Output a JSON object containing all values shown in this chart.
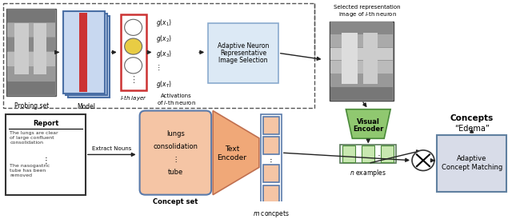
{
  "fig_width": 6.4,
  "fig_height": 2.74,
  "dpi": 100,
  "bg_color": "#ffffff",
  "colors": {
    "xray_dark": "#555555",
    "xray_mid": "#888888",
    "xray_light": "#bbbbbb",
    "model_face": "#c8d8f0",
    "model_edge": "#4a6fa5",
    "model_red": "#cc3333",
    "layer_edge": "#cc3333",
    "neuron_yellow": "#e8cc44",
    "neuron_empty": "#ffffff",
    "neuron_edge": "#666666",
    "anris_face": "#dce9f5",
    "anris_edge": "#8aaace",
    "ve_face": "#90c870",
    "ve_edge": "#4a8a3a",
    "eg_face": "#c8e8b0",
    "eg_edge": "#4a8a3a",
    "eg_outer": "#5a7a5a",
    "concept_face": "#f5c5a5",
    "concept_edge": "#5a7aaa",
    "te_face": "#f0a878",
    "te_edge": "#c07050",
    "emb_face": "#f5c5a5",
    "emb_edge": "#5a7aaa",
    "report_face": "#ffffff",
    "report_edge": "#333333",
    "acm_face": "#d8dce8",
    "acm_edge": "#6080a0",
    "dashed_edge": "#555555",
    "arrow": "#222222",
    "cross_edge": "#333333"
  },
  "labels": {
    "probing_set": "Probing set",
    "model": "Model",
    "l_th_layer": "$l$-th layer",
    "activations_line1": "Activations",
    "activations_line2": "of $i$-th neuron",
    "anris_line1": "Adaptive Neuron",
    "anris_line2": "Representative",
    "anris_line3": "Image Selection",
    "selected_rep_line1": "Selected representation",
    "selected_rep_line2": "image of $i$-th neuron",
    "visual_encoder_line1": "Visual",
    "visual_encoder_line2": "Encoder",
    "n_examples": "$n$ examples",
    "report_title": "Report",
    "report_text1": "The lungs are clear\nof large confluent\nconsolidation",
    "report_text2": "The nasogastric\ntube has been\nremoved",
    "extract_nouns": "Extract Nouns",
    "concept_set_text": "lungs\nconsolidation\n⋮\ntube",
    "concept_set_label": "Concept set",
    "text_encoder_line1": "Text",
    "text_encoder_line2": "Encoder",
    "m_concepts": "$m$ concpets",
    "concepts_title": "Concepts",
    "concepts_word": "“Edema”",
    "adaptive_match_line1": "Adaptive",
    "adaptive_match_line2": "Concept Matching",
    "act_labels": [
      "$g(x_1)$",
      "$g(x_2)$",
      "$g(x_3)$",
      "⋮",
      "$g(x_T)$"
    ]
  }
}
